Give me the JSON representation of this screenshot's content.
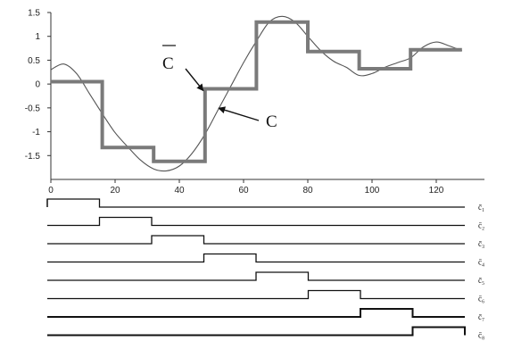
{
  "chart_data": [
    {
      "type": "line",
      "title": "",
      "xlabel": "",
      "ylabel": "",
      "xlim": [
        0,
        135
      ],
      "ylim": [
        -2,
        1.5
      ],
      "x_ticks": [
        0,
        20,
        40,
        60,
        80,
        100,
        120
      ],
      "y_ticks": [
        1.5,
        1,
        0.5,
        0,
        -0.5,
        -1,
        -1.5
      ],
      "series": [
        {
          "name": "C",
          "style": "thin",
          "color": "#555555",
          "x": [
            0,
            4,
            8,
            12,
            16,
            20,
            24,
            28,
            32,
            36,
            40,
            44,
            48,
            52,
            56,
            60,
            64,
            68,
            72,
            76,
            80,
            84,
            88,
            92,
            96,
            100,
            104,
            108,
            112,
            116,
            120,
            124,
            128
          ],
          "y": [
            0.3,
            0.42,
            0.22,
            -0.2,
            -0.62,
            -1.02,
            -1.32,
            -1.6,
            -1.78,
            -1.82,
            -1.72,
            -1.45,
            -1.05,
            -0.55,
            -0.05,
            0.45,
            0.9,
            1.3,
            1.42,
            1.3,
            1.0,
            0.7,
            0.48,
            0.35,
            0.18,
            0.22,
            0.35,
            0.45,
            0.55,
            0.78,
            0.88,
            0.8,
            0.7
          ]
        },
        {
          "name": "C̄",
          "style": "thick-step",
          "color": "#7a7a7a",
          "x": [
            0,
            16,
            16,
            32,
            32,
            48,
            48,
            64,
            64,
            80,
            80,
            96,
            96,
            112,
            112,
            128
          ],
          "y": [
            0.05,
            0.05,
            -1.33,
            -1.33,
            -1.62,
            -1.62,
            -0.1,
            -0.1,
            1.3,
            1.3,
            0.68,
            0.68,
            0.32,
            0.32,
            0.72,
            0.72
          ]
        }
      ],
      "annotations": [
        {
          "text": "C̄",
          "target_x": 48,
          "target_y": -0.1
        },
        {
          "text": "C",
          "target_x": 52,
          "target_y": -0.45
        }
      ]
    },
    {
      "type": "line",
      "title": "",
      "xlabel": "",
      "ylabel": "",
      "segment_boundaries": [
        0,
        16,
        32,
        48,
        64,
        80,
        96,
        112,
        128
      ],
      "rows": [
        {
          "label": "c̄₁",
          "high_from": 0,
          "high_to": 16
        },
        {
          "label": "c̄₂",
          "high_from": 16,
          "high_to": 32
        },
        {
          "label": "c̄₃",
          "high_from": 32,
          "high_to": 48
        },
        {
          "label": "c̄₄",
          "high_from": 48,
          "high_to": 64
        },
        {
          "label": "c̄₅",
          "high_from": 64,
          "high_to": 80
        },
        {
          "label": "c̄₆",
          "high_from": 80,
          "high_to": 96
        },
        {
          "label": "c̄₇",
          "high_from": 96,
          "high_to": 112
        },
        {
          "label": "c̄₈",
          "high_from": 112,
          "high_to": 128
        }
      ]
    }
  ]
}
